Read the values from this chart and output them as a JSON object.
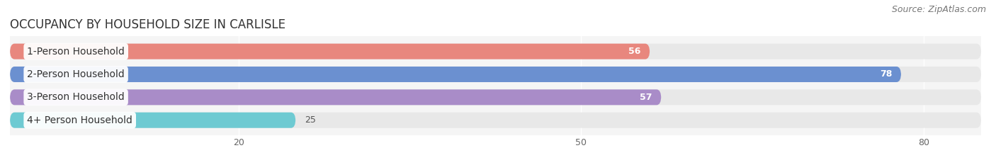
{
  "title": "OCCUPANCY BY HOUSEHOLD SIZE IN CARLISLE",
  "source": "Source: ZipAtlas.com",
  "categories": [
    "1-Person Household",
    "2-Person Household",
    "3-Person Household",
    "4+ Person Household"
  ],
  "values": [
    56,
    78,
    57,
    25
  ],
  "bar_colors": [
    "#E8877E",
    "#6B90D0",
    "#A98CC8",
    "#6ECAD2"
  ],
  "label_colors": [
    "white",
    "white",
    "white",
    "white"
  ],
  "xlim": [
    0,
    85
  ],
  "xticks": [
    20,
    50,
    80
  ],
  "background_color": "#f5f5f5",
  "bar_background_color": "#e8e8e8",
  "title_fontsize": 12,
  "source_fontsize": 9,
  "label_fontsize": 10,
  "value_fontsize": 9,
  "bar_height": 0.68,
  "bar_gap": 0.32
}
